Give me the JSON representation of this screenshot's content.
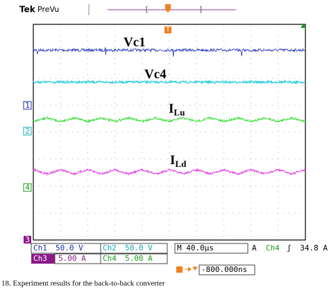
{
  "header": {
    "brand": "Tek",
    "mode": "PreVu"
  },
  "trigger_marker": "T",
  "traces": [
    {
      "label": "Vc1"
    },
    {
      "label": "Vc4"
    },
    {
      "label": {
        "main": "I",
        "sub": "Lu"
      }
    },
    {
      "label": {
        "main": "I",
        "sub": "Ld"
      }
    }
  ],
  "channel_markers": [
    "1",
    "2",
    "4",
    "3"
  ],
  "readouts": {
    "row1": [
      "Ch1",
      "50.0 V",
      "Ch2",
      "50.0 V",
      "M 40.0µs",
      "A",
      "Ch4",
      "ʃ",
      "34.8 A"
    ],
    "row2": [
      "Ch3",
      "5.00 A",
      "Ch4",
      "5.00 A"
    ],
    "trigger_position": "-800.000ns"
  },
  "caption": "18. Experiment results for the back-to-back converter"
}
